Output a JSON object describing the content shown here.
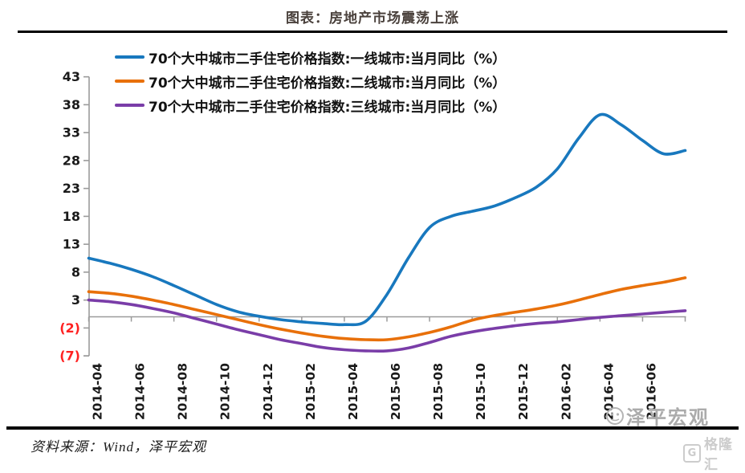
{
  "title": "图表：房地产市场震荡上涨",
  "source": "资料来源：Wind，泽平宏观",
  "watermark": {
    "brand": "泽平宏观",
    "logo_letter": "G",
    "logo_text": "格隆汇"
  },
  "colors": {
    "tier1": "#1878be",
    "tier2": "#e8700a",
    "tier3": "#7a3da8",
    "axis": "#9b9b9b",
    "tick_label": "#1a1a1a",
    "negative_label": "#ff2222"
  },
  "legend": [
    {
      "label": "70个大中城市二手住宅价格指数:一线城市:当月同比（%）",
      "color": "#1878be"
    },
    {
      "label": "70个大中城市二手住宅价格指数:二线城市:当月同比（%）",
      "color": "#e8700a"
    },
    {
      "label": "70个大中城市二手住宅价格指数:三线城市:当月同比（%）",
      "color": "#7a3da8"
    }
  ],
  "chart_data": {
    "type": "line",
    "smooth": true,
    "grid": false,
    "legend_position": "top-left",
    "ylim": [
      -7,
      43
    ],
    "yticks": [
      43,
      38,
      33,
      28,
      23,
      18,
      13,
      8,
      3,
      -2,
      -7
    ],
    "x": [
      "2014-04",
      "2014-05",
      "2014-06",
      "2014-07",
      "2014-08",
      "2014-09",
      "2014-10",
      "2014-11",
      "2014-12",
      "2015-01",
      "2015-02",
      "2015-03",
      "2015-04",
      "2015-05",
      "2015-06",
      "2015-07",
      "2015-08",
      "2015-09",
      "2015-10",
      "2015-11",
      "2015-12",
      "2016-01",
      "2016-02",
      "2016-03",
      "2016-04",
      "2016-05",
      "2016-06",
      "2016-07",
      "2016-08"
    ],
    "xtick_labels": [
      "2014-04",
      "2014-06",
      "2014-08",
      "2014-10",
      "2014-12",
      "2015-02",
      "2015-04",
      "2015-06",
      "2015-08",
      "2015-10",
      "2015-12",
      "2016-02",
      "2016-04",
      "2016-06"
    ],
    "series": [
      {
        "name": "70个大中城市二手住宅价格指数:一线城市:当月同比（%）",
        "color": "#1878be",
        "values": [
          10.5,
          9.6,
          8.5,
          7.2,
          5.6,
          3.9,
          2.2,
          0.9,
          0.1,
          -0.5,
          -0.9,
          -1.2,
          -1.4,
          -0.8,
          4.0,
          10.5,
          16.0,
          18.0,
          18.9,
          19.8,
          21.3,
          23.2,
          26.5,
          32.0,
          36.2,
          34.4,
          31.6,
          29.2,
          29.8
        ]
      },
      {
        "name": "70个大中城市二手住宅价格指数:二线城市:当月同比（%）",
        "color": "#e8700a",
        "values": [
          4.5,
          4.2,
          3.7,
          3.0,
          2.2,
          1.3,
          0.4,
          -0.5,
          -1.4,
          -2.2,
          -2.9,
          -3.5,
          -3.9,
          -4.1,
          -4.1,
          -3.6,
          -2.8,
          -1.8,
          -0.6,
          0.2,
          0.8,
          1.4,
          2.1,
          3.0,
          4.0,
          4.9,
          5.6,
          6.2,
          7.0
        ]
      },
      {
        "name": "70个大中城市二手住宅价格指数:三线城市:当月同比（%）",
        "color": "#7a3da8",
        "values": [
          3.0,
          2.7,
          2.2,
          1.5,
          0.7,
          -0.3,
          -1.3,
          -2.3,
          -3.2,
          -4.1,
          -4.8,
          -5.5,
          -5.9,
          -6.1,
          -6.1,
          -5.6,
          -4.6,
          -3.5,
          -2.7,
          -2.1,
          -1.6,
          -1.2,
          -0.9,
          -0.5,
          -0.1,
          0.2,
          0.5,
          0.8,
          1.1
        ]
      }
    ]
  }
}
